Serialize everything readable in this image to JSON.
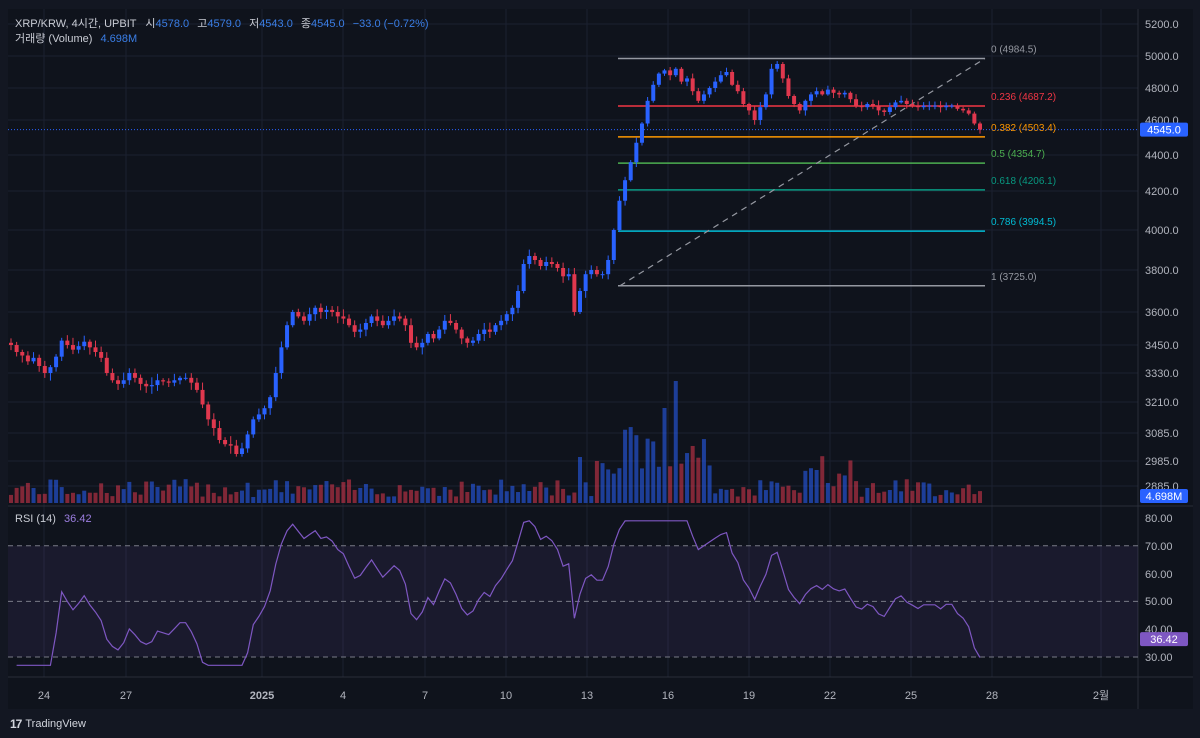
{
  "header": {
    "symbol": "XRP/KRW, 4시간, UPBIT",
    "open_label": "시",
    "open": "4578.0",
    "high_label": "고",
    "high": "4579.0",
    "low_label": "저",
    "low": "4543.0",
    "close_label": "종",
    "close": "4545.0",
    "change": "−33.0 (−0.72%)",
    "volume_label": "거래량 (Volume)",
    "volume_value": "4.698M"
  },
  "rsi": {
    "label": "RSI (14)",
    "value": "36.42",
    "axis_ticks": [
      "80.00",
      "70.00",
      "60.00",
      "50.00",
      "40.00",
      "30.00"
    ]
  },
  "price_axis": {
    "ticks": [
      "5200.0",
      "5000.0",
      "4800.0",
      "4600.0",
      "4400.0",
      "4200.0",
      "4000.0",
      "3800.0",
      "3600.0",
      "3450.0",
      "3330.0",
      "3210.0",
      "3085.0",
      "2985.0",
      "2885.0"
    ],
    "current_price_tag": "4545.0",
    "volume_tag": "4.698M"
  },
  "time_axis": {
    "labels": [
      "24",
      "27",
      "2025",
      "4",
      "7",
      "10",
      "13",
      "16",
      "19",
      "22",
      "25",
      "28",
      "2월"
    ]
  },
  "fibonacci": [
    {
      "label": "0 (4984.5)",
      "price": 4984.5,
      "color": "#9598a1"
    },
    {
      "label": "0.236 (4687.2)",
      "price": 4687.2,
      "color": "#f23645"
    },
    {
      "label": "0.382 (4503.4)",
      "price": 4503.4,
      "color": "#ff9800"
    },
    {
      "label": "0.5 (4354.7)",
      "price": 4354.7,
      "color": "#4caf50"
    },
    {
      "label": "0.618 (4206.1)",
      "price": 4206.1,
      "color": "#089981"
    },
    {
      "label": "0.786 (3994.5)",
      "price": 3994.5,
      "color": "#00bcd4"
    },
    {
      "label": "1 (3725.0)",
      "price": 3725.0,
      "color": "#9598a1"
    }
  ],
  "colors": {
    "up": "#2962ff",
    "down": "#e0384e",
    "rsi_line": "#7e57c2",
    "rsi_tag": "#7e57c2",
    "price_tag": "#2962ff",
    "background": "#0f131c"
  },
  "branding": {
    "logo_text": "TradingView",
    "logo_mark": "17"
  },
  "chart_data": {
    "type": "candlestick",
    "symbol": "XRP/KRW",
    "interval": "4시간",
    "exchange": "UPBIT",
    "candles_close": [
      3450,
      3420,
      3405,
      3380,
      3395,
      3360,
      3330,
      3355,
      3400,
      3470,
      3450,
      3430,
      3445,
      3465,
      3440,
      3420,
      3395,
      3330,
      3300,
      3285,
      3300,
      3330,
      3310,
      3285,
      3275,
      3280,
      3300,
      3295,
      3290,
      3300,
      3310,
      3310,
      3290,
      3260,
      3200,
      3140,
      3105,
      3060,
      3045,
      3040,
      3010,
      3030,
      3080,
      3140,
      3160,
      3185,
      3230,
      3330,
      3440,
      3540,
      3600,
      3580,
      3560,
      3590,
      3620,
      3600,
      3610,
      3600,
      3580,
      3570,
      3540,
      3510,
      3520,
      3550,
      3580,
      3560,
      3540,
      3560,
      3580,
      3570,
      3540,
      3460,
      3440,
      3460,
      3500,
      3480,
      3520,
      3560,
      3550,
      3520,
      3480,
      3460,
      3470,
      3500,
      3520,
      3510,
      3540,
      3560,
      3590,
      3620,
      3700,
      3830,
      3870,
      3850,
      3820,
      3840,
      3830,
      3810,
      3770,
      3780,
      3600,
      3700,
      3780,
      3800,
      3780,
      3780,
      3850,
      4000,
      4150,
      4260,
      4360,
      4470,
      4580,
      4720,
      4820,
      4890,
      4910,
      4880,
      4920,
      4840,
      4860,
      4780,
      4720,
      4760,
      4800,
      4840,
      4880,
      4900,
      4820,
      4780,
      4700,
      4660,
      4600,
      4680,
      4760,
      4920,
      4950,
      4860,
      4750,
      4700,
      4660,
      4720,
      4760,
      4780,
      4760,
      4790,
      4770,
      4760,
      4770,
      4730,
      4690,
      4680,
      4700,
      4690,
      4660,
      4650,
      4680,
      4710,
      4720,
      4700,
      4690,
      4680,
      4690,
      4690,
      4690,
      4680,
      4690,
      4690,
      4670,
      4660,
      4640,
      4580,
      4545
    ],
    "x_labels": [
      "24",
      "27",
      "2025",
      "4",
      "7",
      "10",
      "13",
      "16",
      "19",
      "22",
      "25",
      "28",
      "2월"
    ],
    "rsi_range": [
      25,
      80
    ],
    "price_range": [
      2885,
      5200
    ]
  }
}
